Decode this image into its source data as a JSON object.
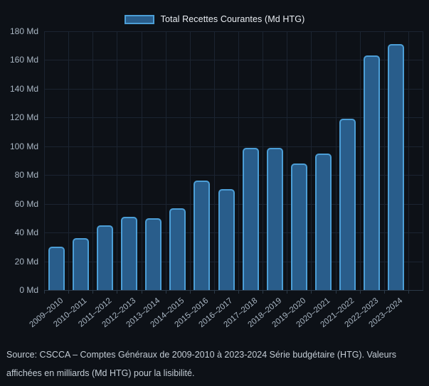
{
  "colors": {
    "background": "#0d1117",
    "bar_fill": "#295d8b",
    "bar_border": "#4c9ed6",
    "grid": "#1b2431",
    "axis_line": "#2c3a49",
    "tick_label": "#a9b6c3",
    "legend_text": "#e9edf2",
    "source_text": "#c3ccd5"
  },
  "legend": {
    "label": "Total Recettes Courantes (Md HTG)"
  },
  "source_note": "Source: CSCCA – Comptes Généraux de 2009-2010 à 2023-2024 Série budgétaire (HTG). Valeurs affichées en milliards (Md HTG) pour la lisibilité.",
  "chart_data": {
    "type": "bar",
    "title": "",
    "xlabel": "",
    "ylabel": "",
    "unit": "Md HTG (milliards de gourdes)",
    "legend_entries": [
      "Total Recettes Courantes (Md HTG)"
    ],
    "legend_position": "top-center",
    "grid": true,
    "ylim": [
      0,
      180
    ],
    "categories": [
      "2009–2010",
      "2010–2011",
      "2011–2012",
      "2012–2013",
      "2013–2014",
      "2014–2015",
      "2015–2016",
      "2016–2017",
      "2017–2018",
      "2018–2019",
      "2019–2020",
      "2020–2021",
      "2021–2022",
      "2022–2023",
      "2023–2024"
    ],
    "values": [
      30,
      36,
      45,
      51,
      50,
      57,
      76,
      70,
      99,
      99,
      88,
      95,
      119,
      163,
      171
    ],
    "y_ticks": [
      {
        "value": 0,
        "label": "0 Md"
      },
      {
        "value": 20,
        "label": "20 Md"
      },
      {
        "value": 40,
        "label": "40 Md"
      },
      {
        "value": 60,
        "label": "60 Md"
      },
      {
        "value": 80,
        "label": "80 Md"
      },
      {
        "value": 100,
        "label": "100 Md"
      },
      {
        "value": 120,
        "label": "120 Md"
      },
      {
        "value": 140,
        "label": "140 Md"
      },
      {
        "value": 160,
        "label": "160 Md"
      },
      {
        "value": 180,
        "label": "180 Md"
      }
    ]
  }
}
